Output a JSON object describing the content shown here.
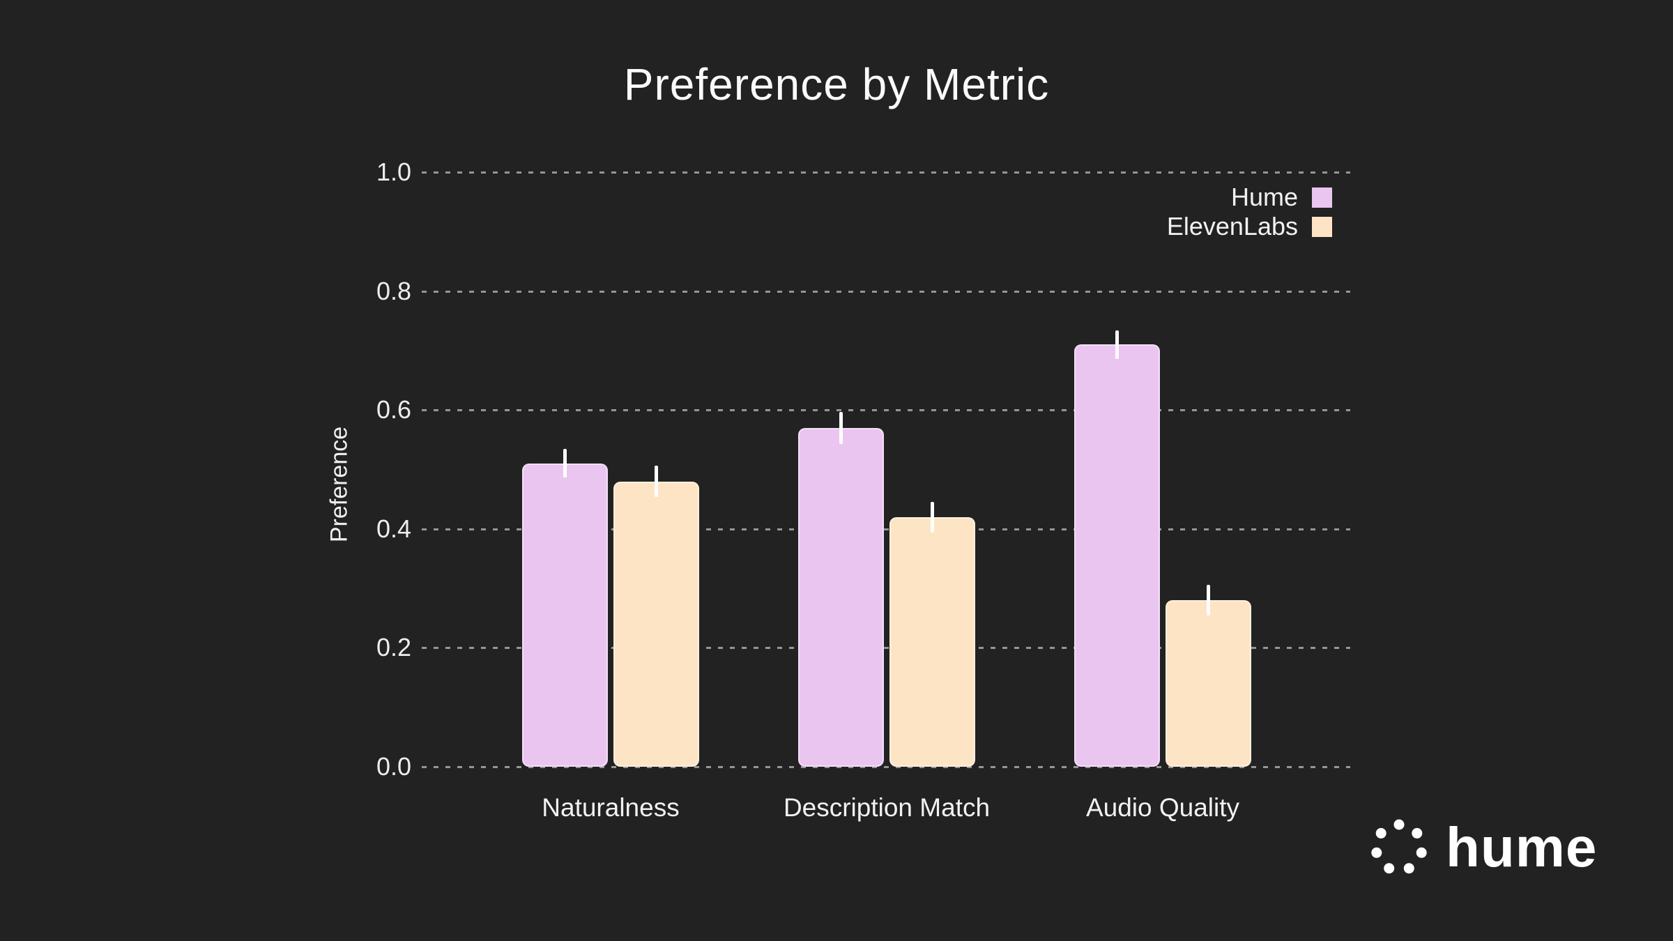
{
  "background_color": "#222222",
  "chart_data": {
    "type": "bar",
    "title": "Preference by Metric",
    "xlabel": "",
    "ylabel": "Preference",
    "categories": [
      "Naturalness",
      "Description Match",
      "Audio Quality"
    ],
    "series": [
      {
        "name": "Hume",
        "color": "#eac5f0",
        "values": [
          0.51,
          0.57,
          0.71
        ],
        "errors": [
          0.024,
          0.027,
          0.024
        ]
      },
      {
        "name": "ElevenLabs",
        "color": "#fde4c5",
        "values": [
          0.48,
          0.42,
          0.28
        ],
        "errors": [
          0.026,
          0.026,
          0.026
        ]
      }
    ],
    "ylim": [
      0.0,
      1.0
    ],
    "yticks": [
      0.0,
      0.2,
      0.4,
      0.6,
      0.8,
      1.0
    ],
    "grid": "horizontal dashed",
    "grid_color": "#aaaaaa",
    "legend_position": "top-right",
    "error_bar_color": "#ffffff",
    "text_color": "#f2f2f2"
  },
  "branding": {
    "logo_text": "hume"
  }
}
